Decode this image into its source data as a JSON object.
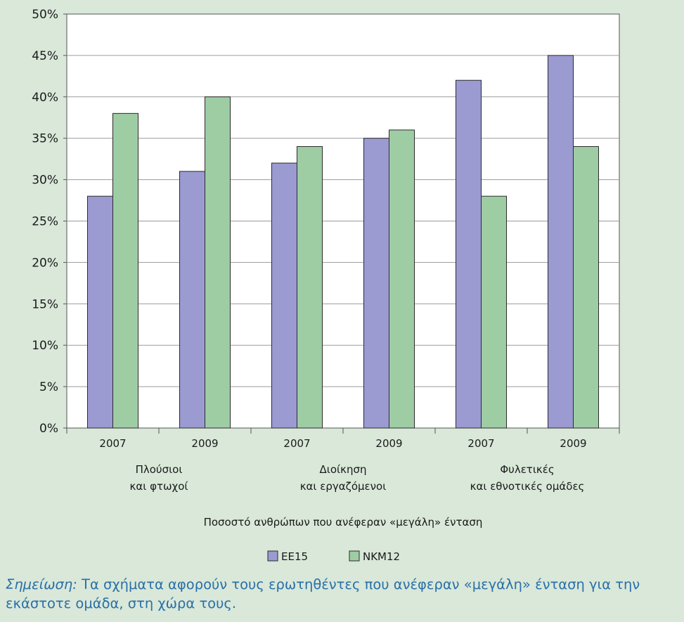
{
  "chart_data": {
    "type": "bar",
    "categories": [
      "2007",
      "2009",
      "2007",
      "2009",
      "2007",
      "2009"
    ],
    "groups": [
      {
        "label_lines": [
          "Πλούσιοι",
          "και φτωχοί"
        ],
        "span": [
          0,
          1
        ]
      },
      {
        "label_lines": [
          "Διοίκηση",
          "και εργαζόμενοι"
        ],
        "span": [
          2,
          3
        ]
      },
      {
        "label_lines": [
          "Φυλετικές",
          "και εθνοτικές ομάδες"
        ],
        "span": [
          4,
          5
        ]
      }
    ],
    "series": [
      {
        "name": "EE15",
        "color": "#9b9bd1",
        "values": [
          28,
          31,
          32,
          35,
          42,
          45
        ]
      },
      {
        "name": "NKM12",
        "color": "#9ecda4",
        "values": [
          38,
          40,
          34,
          36,
          28,
          34
        ]
      }
    ],
    "ylim": [
      0,
      50
    ],
    "yticks": [
      0,
      5,
      10,
      15,
      20,
      25,
      30,
      35,
      40,
      45,
      50
    ],
    "ytick_labels": [
      "0%",
      "5%",
      "10%",
      "15%",
      "20%",
      "25%",
      "30%",
      "35%",
      "40%",
      "45%",
      "50%"
    ],
    "xlabel": "Ποσοστό ανθρώπων που ανέφεραν «μεγάλη» ένταση",
    "grid": true,
    "legend_position": "bottom"
  },
  "note": {
    "label": "Σημείωση:",
    "text": " Τα σχήματα αφορούν τους ερωτηθέντες που ανέφεραν «μεγάλη» ένταση για την εκάστοτε ομάδα, στη χώρα τους."
  }
}
